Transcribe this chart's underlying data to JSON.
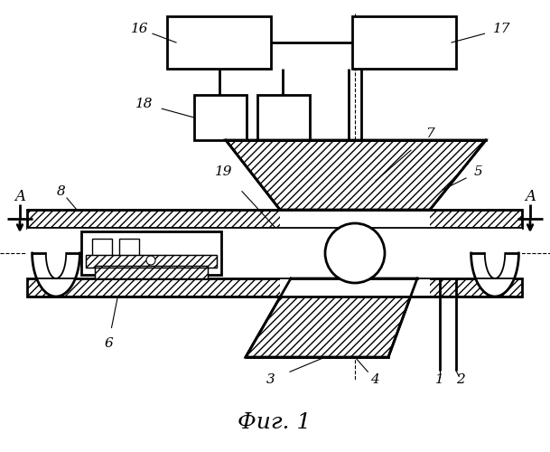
{
  "title": "Фиг. 1",
  "bg_color": "#ffffff",
  "line_color": "#000000",
  "lw": 1.3,
  "lw2": 2.0
}
